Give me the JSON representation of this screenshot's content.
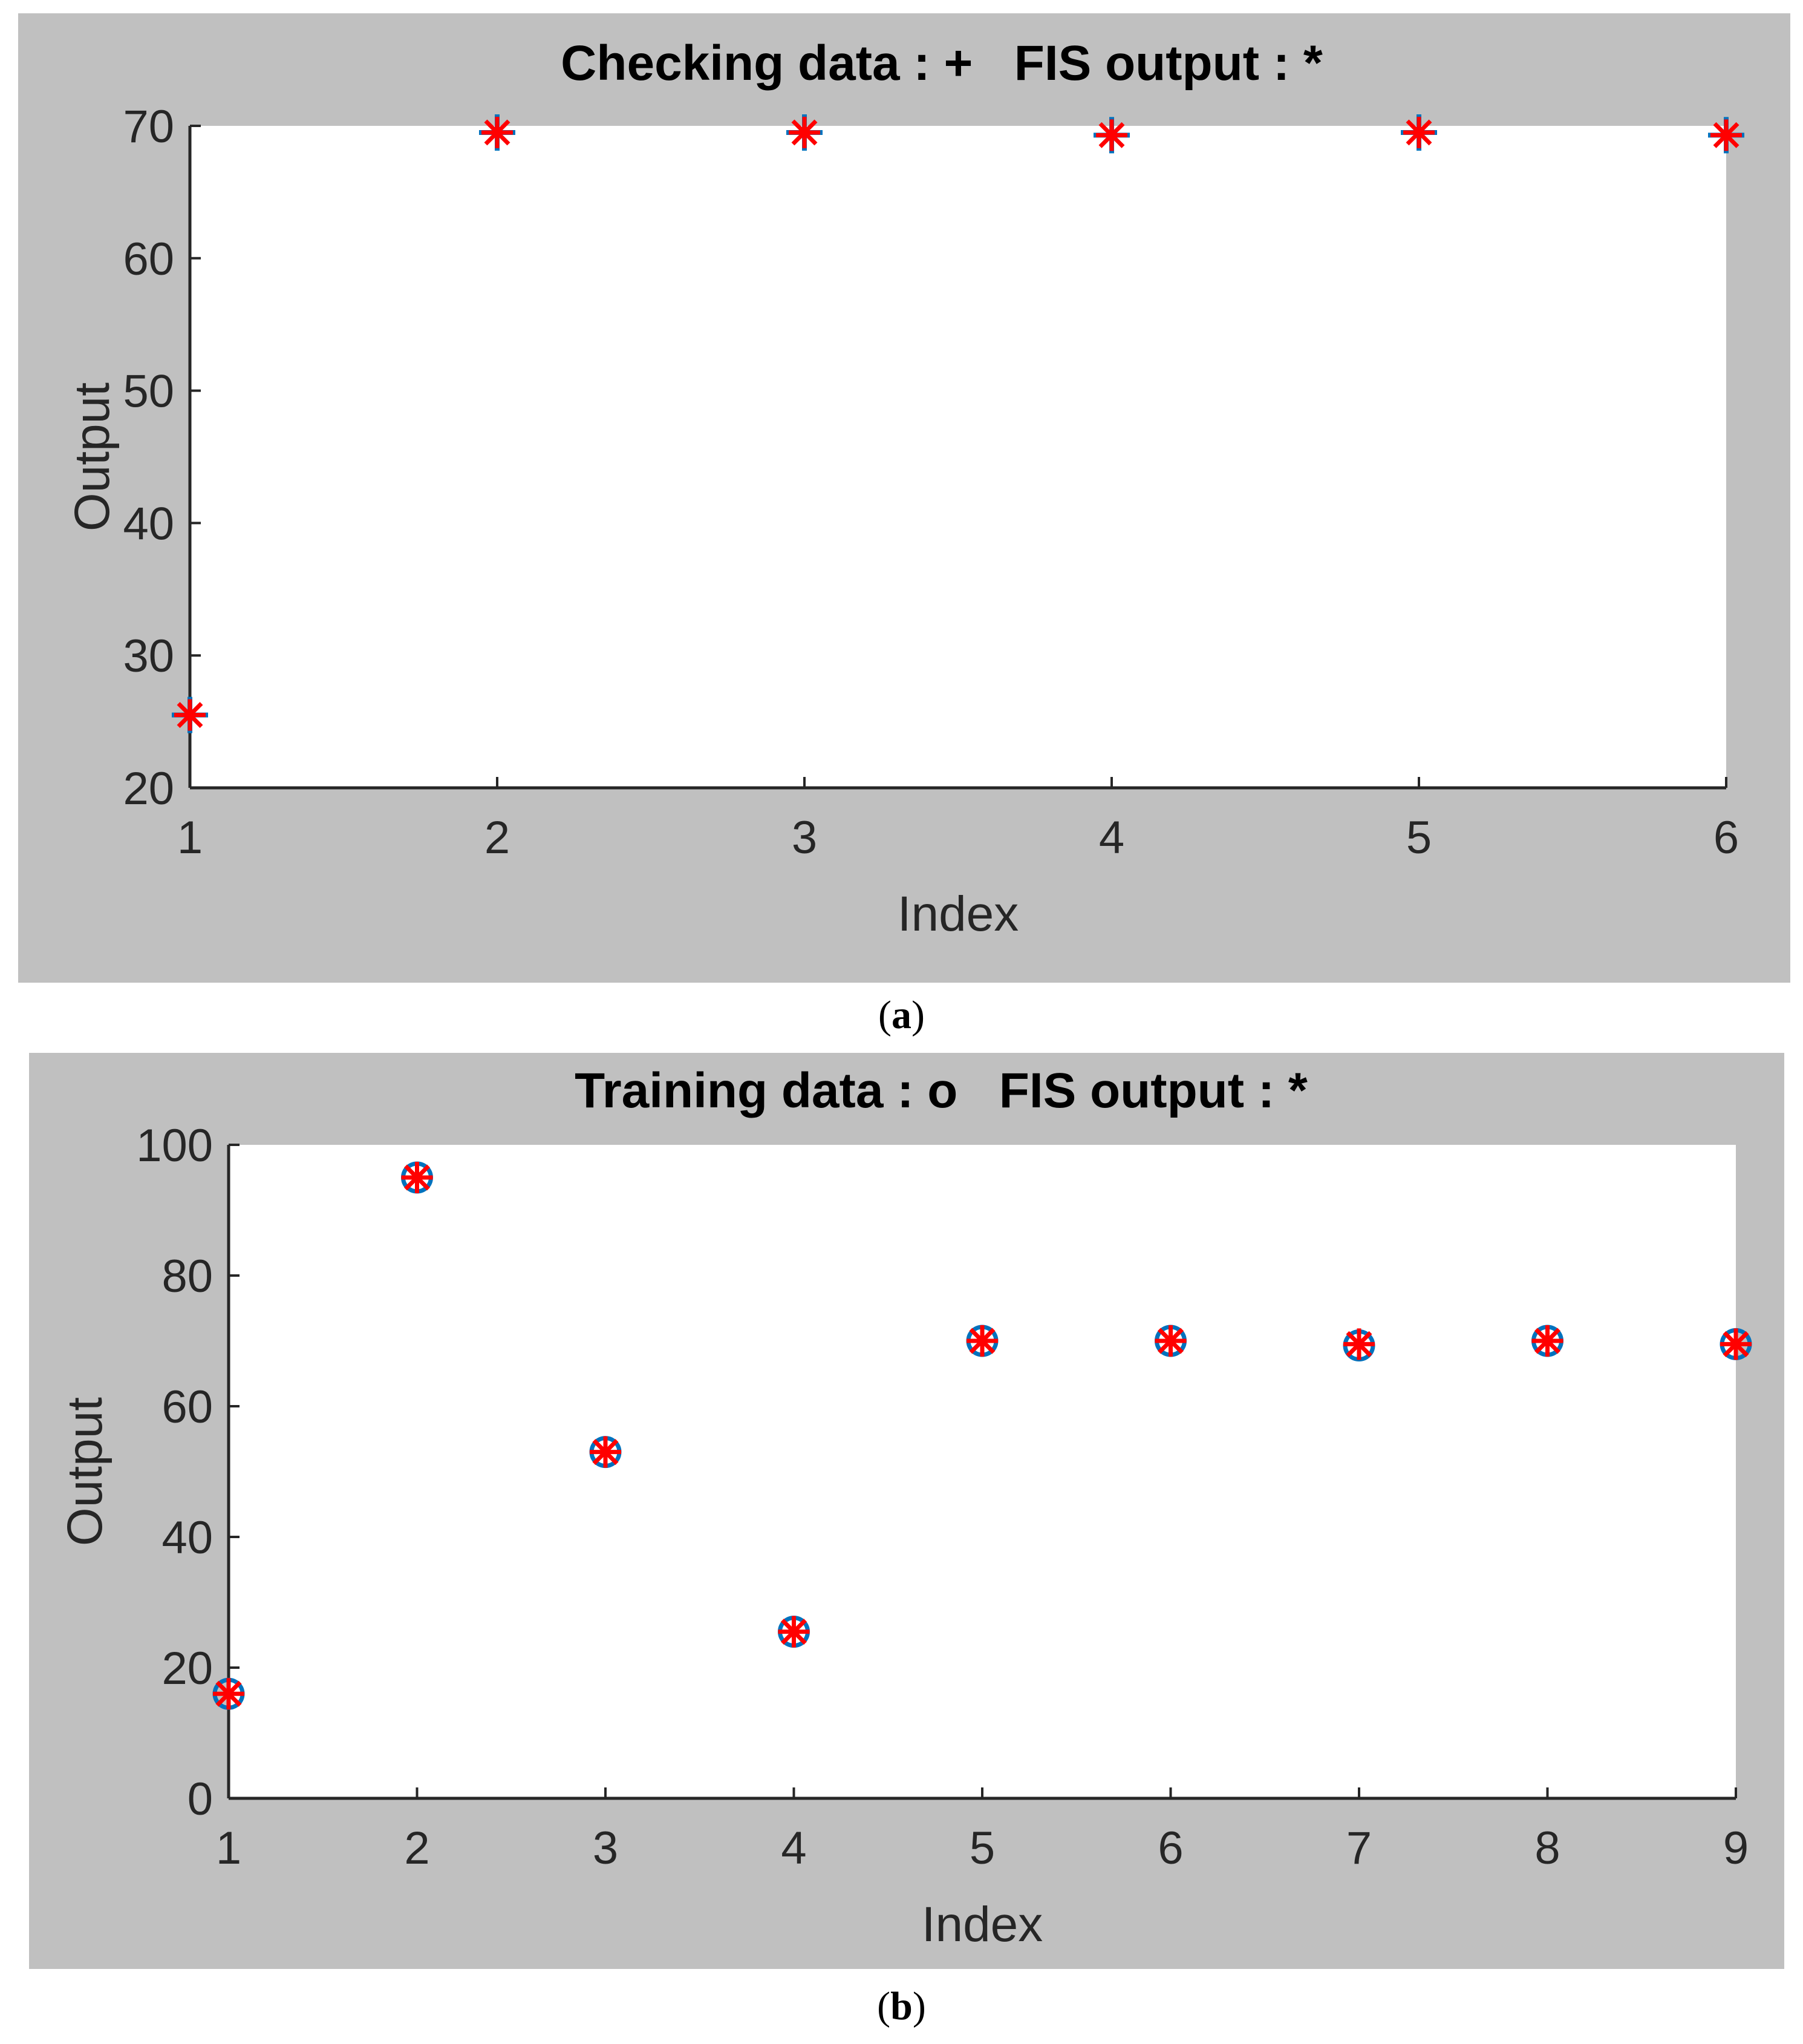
{
  "colors": {
    "panel_background": "#c0c0c0",
    "plot_background": "#ffffff",
    "axis": "#262626",
    "text": "#262626",
    "data_marker": "#0072bd",
    "fis_marker": "#ff0000"
  },
  "captions": [
    {
      "open": "(",
      "letter": "a",
      "close": ")"
    },
    {
      "open": "(",
      "letter": "b",
      "close": ")"
    }
  ],
  "chart_data": [
    {
      "type": "scatter",
      "title": "Checking data : +   FIS output : *",
      "xlabel": "Index",
      "ylabel": "Output",
      "xlim": [
        1,
        6
      ],
      "ylim": [
        20,
        70
      ],
      "xticks": [
        1,
        2,
        3,
        4,
        5,
        6
      ],
      "yticks": [
        20,
        30,
        40,
        50,
        60,
        70
      ],
      "grid": false,
      "series": [
        {
          "name": "Checking data",
          "marker": "plus",
          "color": "#0072bd",
          "x": [
            1,
            2,
            3,
            4,
            5,
            6
          ],
          "y": [
            25.5,
            69.5,
            69.5,
            69.3,
            69.5,
            69.3
          ]
        },
        {
          "name": "FIS output",
          "marker": "asterisk",
          "color": "#ff0000",
          "x": [
            1,
            2,
            3,
            4,
            5,
            6
          ],
          "y": [
            25.5,
            69.5,
            69.5,
            69.3,
            69.5,
            69.3
          ]
        }
      ]
    },
    {
      "type": "scatter",
      "title": "Training data : o   FIS output : *",
      "xlabel": "Index",
      "ylabel": "Output",
      "xlim": [
        1,
        9
      ],
      "ylim": [
        0,
        100
      ],
      "xticks": [
        1,
        2,
        3,
        4,
        5,
        6,
        7,
        8,
        9
      ],
      "yticks": [
        0,
        20,
        40,
        60,
        80,
        100
      ],
      "grid": false,
      "series": [
        {
          "name": "Training data",
          "marker": "circle",
          "color": "#0072bd",
          "x": [
            1,
            2,
            3,
            4,
            5,
            6,
            7,
            8,
            9
          ],
          "y": [
            16,
            95,
            53,
            25.5,
            70,
            70,
            69.3,
            70,
            69.5
          ]
        },
        {
          "name": "FIS output",
          "marker": "asterisk",
          "color": "#ff0000",
          "x": [
            1,
            2,
            3,
            4,
            5,
            6,
            7,
            8,
            9
          ],
          "y": [
            16,
            95,
            53,
            25.5,
            70,
            70,
            69.5,
            70,
            69.5
          ]
        }
      ]
    }
  ]
}
